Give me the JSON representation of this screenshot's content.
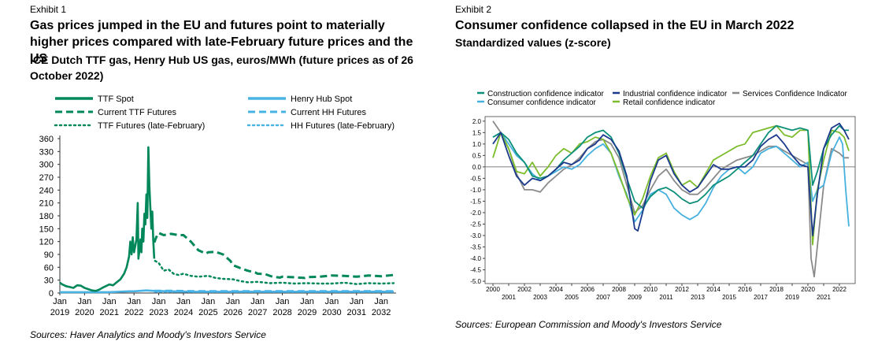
{
  "colors": {
    "ttf": "#00875a",
    "hh": "#4ab3e6",
    "construction": "#0c8f7a",
    "industrial": "#1b3a8c",
    "services": "#8a8a8a",
    "consumer": "#46b1de",
    "retail": "#7cbc2d"
  },
  "exhibit1": {
    "label": "Exhibit 1",
    "title": "Gas prices jumped in the EU and futures point to materially higher prices compared with late-February future prices and the US",
    "subtitle": "ICE Dutch TTF gas, Henry Hub US gas, euros/MWh (future prices as of 26 October 2022)",
    "source": "Sources: Haver Analytics and Moody's Investors Service"
  },
  "exhibit2": {
    "label": "Exhibit 2",
    "title": "Consumer confidence collapsed in the EU in March 2022",
    "subtitle": "Standardized values (z-score)",
    "source": "Sources: European Commission and Moody's Investors Service"
  },
  "chart_data": [
    {
      "type": "line",
      "title": "Gas prices jumped in the EU and futures point to materially higher prices compared with late-February future prices and the US",
      "ylabel": "euros/MWh",
      "xlim": [
        2019.0,
        2032.6
      ],
      "ylim": [
        0,
        360
      ],
      "yticks": [
        "0",
        "30",
        "60",
        "90",
        "120",
        "150",
        "180",
        "210",
        "240",
        "270",
        "300",
        "330",
        "360"
      ],
      "xticks": [
        {
          "year": 2019,
          "month": "Jan"
        },
        {
          "year": 2020,
          "month": "Jan"
        },
        {
          "year": 2021,
          "month": "Jan"
        },
        {
          "year": 2022,
          "month": "Jan"
        },
        {
          "year": 2023,
          "month": "Jan"
        },
        {
          "year": 2024,
          "month": "Jan"
        },
        {
          "year": 2025,
          "month": "Jan"
        },
        {
          "year": 2026,
          "month": "Jan"
        },
        {
          "year": 2027,
          "month": "Jan"
        },
        {
          "year": 2028,
          "month": "Jan"
        },
        {
          "year": 2029,
          "month": "Jan"
        },
        {
          "year": 2030,
          "month": "Jan"
        },
        {
          "year": 2031,
          "month": "Jan"
        },
        {
          "year": 2032,
          "month": "Jan"
        }
      ],
      "legend_position": "top",
      "series": [
        {
          "name": "TTF Spot",
          "style": "solid",
          "color_key": "ttf",
          "x": [
            2019.0,
            2019.1,
            2019.25,
            2019.4,
            2019.55,
            2019.7,
            2019.85,
            2020.0,
            2020.15,
            2020.3,
            2020.45,
            2020.6,
            2020.75,
            2020.9,
            2021.0,
            2021.15,
            2021.3,
            2021.45,
            2021.6,
            2021.7,
            2021.8,
            2021.85,
            2021.9,
            2021.95,
            2022.0,
            2022.05,
            2022.1,
            2022.15,
            2022.18,
            2022.22,
            2022.26,
            2022.3,
            2022.33,
            2022.38,
            2022.42,
            2022.46,
            2022.5,
            2022.54,
            2022.58,
            2022.62,
            2022.66,
            2022.7,
            2022.74,
            2022.78,
            2022.82
          ],
          "y": [
            24,
            20,
            16,
            14,
            12,
            18,
            17,
            12,
            9,
            6,
            5,
            8,
            13,
            17,
            20,
            18,
            25,
            32,
            45,
            60,
            85,
            120,
            90,
            130,
            95,
            110,
            125,
            210,
            80,
            100,
            125,
            95,
            150,
            120,
            185,
            160,
            230,
            175,
            340,
            250,
            200,
            150,
            190,
            120,
            80
          ]
        },
        {
          "name": "Henry Hub Spot",
          "style": "solid",
          "color_key": "hh",
          "x": [
            2019.0,
            2020.0,
            2021.0,
            2021.8,
            2022.0,
            2022.5,
            2022.82,
            2023.5,
            2024.5,
            2025.5,
            2026.5,
            2027.5,
            2028.5,
            2029.5,
            2030.5,
            2031.5,
            2032.5
          ],
          "y": [
            2,
            2,
            2,
            4,
            4,
            6,
            5,
            4,
            3,
            3,
            3,
            3,
            3,
            3,
            3,
            3,
            3
          ]
        },
        {
          "name": "Current TTF Futures",
          "style": "dashed",
          "color_key": "ttf",
          "x": [
            2022.82,
            2022.9,
            2023.0,
            2023.2,
            2023.5,
            2023.8,
            2024.0,
            2024.3,
            2024.6,
            2024.9,
            2025.0,
            2025.3,
            2025.6,
            2025.9,
            2026.0,
            2026.3,
            2026.6,
            2026.9,
            2027.0,
            2027.3,
            2027.6,
            2027.9,
            2028.0,
            2028.4,
            2028.9,
            2029.0,
            2029.5,
            2030.0,
            2030.5,
            2031.0,
            2031.5,
            2032.0,
            2032.5
          ],
          "y": [
            118,
            130,
            140,
            135,
            138,
            135,
            135,
            120,
            100,
            92,
            95,
            96,
            90,
            75,
            65,
            58,
            52,
            48,
            45,
            44,
            38,
            36,
            38,
            37,
            35,
            37,
            38,
            41,
            40,
            38,
            41,
            39,
            42
          ]
        },
        {
          "name": "Current HH Futures",
          "style": "dashed",
          "color_key": "hh",
          "x": [
            2022.82,
            2023.5,
            2024.5,
            2025.5,
            2026.5,
            2027.5,
            2028.5,
            2029.5,
            2030.5,
            2031.5,
            2032.5
          ],
          "y": [
            5,
            5,
            4,
            4,
            4,
            4,
            4,
            4,
            4,
            4,
            4
          ]
        },
        {
          "name": "TTF Futures (late-February)",
          "style": "dotted",
          "color_key": "ttf",
          "x": [
            2022.85,
            2023.0,
            2023.2,
            2023.4,
            2023.6,
            2023.8,
            2024.0,
            2024.3,
            2024.6,
            2025.0,
            2025.3,
            2025.6,
            2026.0,
            2026.3,
            2026.6,
            2027.0,
            2027.5,
            2028.0,
            2028.5,
            2029.0,
            2029.5,
            2030.0,
            2030.5,
            2031.0,
            2031.5,
            2032.0,
            2032.5
          ],
          "y": [
            75,
            70,
            52,
            55,
            45,
            42,
            45,
            40,
            38,
            40,
            35,
            33,
            32,
            28,
            25,
            26,
            23,
            24,
            22,
            23,
            22,
            22,
            24,
            21,
            23,
            22,
            23
          ]
        },
        {
          "name": "HH Futures (late-February)",
          "style": "dotted",
          "color_key": "hh",
          "x": [
            2022.85,
            2023.5,
            2024.5,
            2025.5,
            2026.5,
            2027.5,
            2028.5,
            2029.5,
            2030.5,
            2031.5,
            2032.5
          ],
          "y": [
            3,
            3,
            3,
            3,
            3,
            3,
            3,
            3,
            3,
            3,
            3
          ]
        }
      ]
    },
    {
      "type": "line",
      "title": "Consumer confidence collapsed in the EU in March 2022",
      "ylabel": "Standardized values (z-score)",
      "xlim": [
        1999.5,
        2023.0
      ],
      "ylim": [
        -5.1,
        2.2
      ],
      "yticks": [
        "-5.0",
        "-4.5",
        "-4.0",
        "-3.5",
        "-3.0",
        "-2.5",
        "-2.0",
        "-1.5",
        "-1.0",
        "-0.5",
        "0.0",
        "0.5",
        "1.0",
        "1.5",
        "2.0"
      ],
      "xticks_upper": [
        "2000",
        "2002",
        "2004",
        "2006",
        "2008",
        "2010",
        "2012",
        "2014",
        "2016",
        "2018",
        "2020",
        "2022"
      ],
      "xticks_lower": [
        "2001",
        "2003",
        "2005",
        "2007",
        "2009",
        "2011",
        "2013",
        "2015",
        "2017",
        "2019",
        "2021"
      ],
      "legend_position": "top",
      "series": [
        {
          "name": "Construction confidence indicator",
          "color_key": "construction",
          "x": [
            2000,
            2000.5,
            2001,
            2001.5,
            2002,
            2002.5,
            2003,
            2003.5,
            2004,
            2004.5,
            2005,
            2005.5,
            2006,
            2006.5,
            2007,
            2007.5,
            2008,
            2008.5,
            2009,
            2009.5,
            2010,
            2010.5,
            2011,
            2011.5,
            2012,
            2012.5,
            2013,
            2013.5,
            2014,
            2014.5,
            2015,
            2015.5,
            2016,
            2016.5,
            2017,
            2017.5,
            2018,
            2018.5,
            2019,
            2019.5,
            2020,
            2020.3,
            2020.6,
            2021,
            2021.5,
            2022,
            2022.3,
            2022.6
          ],
          "y": [
            1.3,
            1.5,
            1.2,
            0.6,
            0.2,
            -0.4,
            -0.5,
            -0.4,
            -0.1,
            0.3,
            0.6,
            0.9,
            1.3,
            1.5,
            1.6,
            1.3,
            0.6,
            -0.5,
            -1.5,
            -1.8,
            -1.3,
            -1.0,
            -0.9,
            -1.1,
            -1.4,
            -1.6,
            -1.5,
            -1.2,
            -0.8,
            -0.6,
            -0.4,
            -0.1,
            0.2,
            0.5,
            1.0,
            1.5,
            1.8,
            1.7,
            1.6,
            1.7,
            1.6,
            -0.8,
            -0.2,
            0.8,
            1.4,
            1.8,
            1.6,
            1.6
          ]
        },
        {
          "name": "Industrial confidence indicator",
          "color_key": "industrial",
          "x": [
            2000,
            2000.5,
            2001,
            2001.5,
            2002,
            2002.5,
            2003,
            2003.5,
            2004,
            2004.5,
            2005,
            2005.5,
            2006,
            2006.5,
            2007,
            2007.5,
            2008,
            2008.5,
            2009,
            2009.2,
            2009.5,
            2010,
            2010.5,
            2011,
            2011.5,
            2012,
            2012.5,
            2013,
            2013.5,
            2014,
            2014.5,
            2015,
            2015.5,
            2016,
            2016.5,
            2017,
            2017.5,
            2018,
            2018.5,
            2019,
            2019.5,
            2020,
            2020.3,
            2020.6,
            2021,
            2021.5,
            2022,
            2022.3,
            2022.6
          ],
          "y": [
            1.0,
            1.5,
            0.5,
            -0.4,
            -0.8,
            -0.5,
            -0.6,
            -0.4,
            -0.1,
            0.2,
            0.1,
            0.3,
            0.8,
            1.0,
            1.4,
            1.2,
            0.7,
            -0.4,
            -2.7,
            -2.8,
            -2.0,
            -0.6,
            0.3,
            0.5,
            -0.3,
            -0.8,
            -1.1,
            -0.9,
            -0.4,
            0.1,
            -0.1,
            -0.1,
            0.0,
            0.0,
            0.3,
            0.9,
            1.2,
            1.4,
            1.0,
            0.5,
            0.1,
            0.0,
            -3.0,
            -1.2,
            0.8,
            1.7,
            1.9,
            1.6,
            1.2
          ]
        },
        {
          "name": "Services Confidence Indicator",
          "color_key": "services",
          "x": [
            2000,
            2000.5,
            2001,
            2001.5,
            2002,
            2002.5,
            2003,
            2003.5,
            2004,
            2004.5,
            2005,
            2005.5,
            2006,
            2006.5,
            2007,
            2007.5,
            2008,
            2008.5,
            2009,
            2009.5,
            2010,
            2010.5,
            2011,
            2011.5,
            2012,
            2012.5,
            2013,
            2013.5,
            2014,
            2014.5,
            2015,
            2015.5,
            2016,
            2016.5,
            2017,
            2017.5,
            2018,
            2018.5,
            2019,
            2019.5,
            2020,
            2020.2,
            2020.4,
            2020.7,
            2021,
            2021.5,
            2022,
            2022.3,
            2022.6
          ],
          "y": [
            2.0,
            1.5,
            0.8,
            -0.3,
            -1.0,
            -1.0,
            -1.1,
            -0.7,
            -0.4,
            -0.1,
            0.1,
            0.4,
            0.8,
            1.1,
            1.2,
            1.0,
            0.4,
            -0.8,
            -2.0,
            -1.7,
            -1.0,
            -0.4,
            -0.1,
            -0.6,
            -1.0,
            -1.2,
            -1.2,
            -0.9,
            -0.5,
            -0.1,
            0.1,
            0.3,
            0.4,
            0.5,
            0.7,
            0.9,
            0.9,
            0.7,
            0.5,
            0.3,
            0.1,
            -4.0,
            -4.8,
            -2.8,
            -0.8,
            0.8,
            0.6,
            0.4,
            0.4
          ]
        },
        {
          "name": "Consumer confidence indicator",
          "color_key": "consumer",
          "x": [
            2000,
            2000.5,
            2001,
            2001.5,
            2002,
            2002.5,
            2003,
            2003.5,
            2004,
            2004.5,
            2005,
            2005.5,
            2006,
            2006.5,
            2007,
            2007.5,
            2008,
            2008.5,
            2009,
            2009.5,
            2010,
            2010.5,
            2011,
            2011.5,
            2012,
            2012.5,
            2013,
            2013.5,
            2014,
            2014.5,
            2015,
            2015.5,
            2016,
            2016.5,
            2017,
            2017.5,
            2018,
            2018.5,
            2019,
            2019.5,
            2020,
            2020.3,
            2020.6,
            2021,
            2021.5,
            2022,
            2022.2,
            2022.4,
            2022.6
          ],
          "y": [
            1.3,
            1.5,
            1.0,
            0.5,
            0.2,
            -0.3,
            -0.6,
            -0.4,
            -0.2,
            0.0,
            -0.1,
            0.1,
            0.5,
            0.8,
            1.0,
            0.6,
            -0.4,
            -1.2,
            -2.4,
            -1.9,
            -1.2,
            -1.0,
            -1.2,
            -1.8,
            -2.1,
            -2.3,
            -2.1,
            -1.6,
            -0.9,
            -0.4,
            -0.1,
            0.0,
            -0.3,
            0.0,
            0.6,
            0.8,
            0.9,
            0.6,
            0.3,
            0.0,
            0.2,
            -1.5,
            -1.0,
            -0.8,
            0.6,
            1.3,
            1.0,
            -1.0,
            -2.6
          ]
        },
        {
          "name": "Retail confidence indicator",
          "color_key": "retail",
          "x": [
            2000,
            2000.5,
            2001,
            2001.5,
            2002,
            2002.5,
            2003,
            2003.5,
            2004,
            2004.5,
            2005,
            2005.5,
            2006,
            2006.5,
            2007,
            2007.5,
            2008,
            2008.5,
            2009,
            2009.5,
            2010,
            2010.5,
            2011,
            2011.5,
            2012,
            2012.5,
            2013,
            2013.5,
            2014,
            2014.5,
            2015,
            2015.5,
            2016,
            2016.5,
            2017,
            2017.5,
            2018,
            2018.5,
            2019,
            2019.5,
            2020,
            2020.3,
            2020.6,
            2021,
            2021.5,
            2022,
            2022.3,
            2022.6
          ],
          "y": [
            0.4,
            1.5,
            0.8,
            -0.2,
            -0.3,
            0.2,
            -0.4,
            0.0,
            0.5,
            0.8,
            0.6,
            1.0,
            1.1,
            1.3,
            1.2,
            0.6,
            -0.3,
            -1.3,
            -2.1,
            -1.4,
            -0.4,
            0.4,
            0.6,
            -0.2,
            -0.8,
            -0.6,
            -0.9,
            -0.3,
            0.3,
            0.5,
            0.7,
            0.9,
            1.0,
            1.5,
            1.6,
            1.7,
            1.8,
            1.4,
            1.3,
            1.6,
            1.6,
            -3.4,
            -1.0,
            0.3,
            1.6,
            1.5,
            1.3,
            0.7
          ]
        }
      ]
    }
  ]
}
